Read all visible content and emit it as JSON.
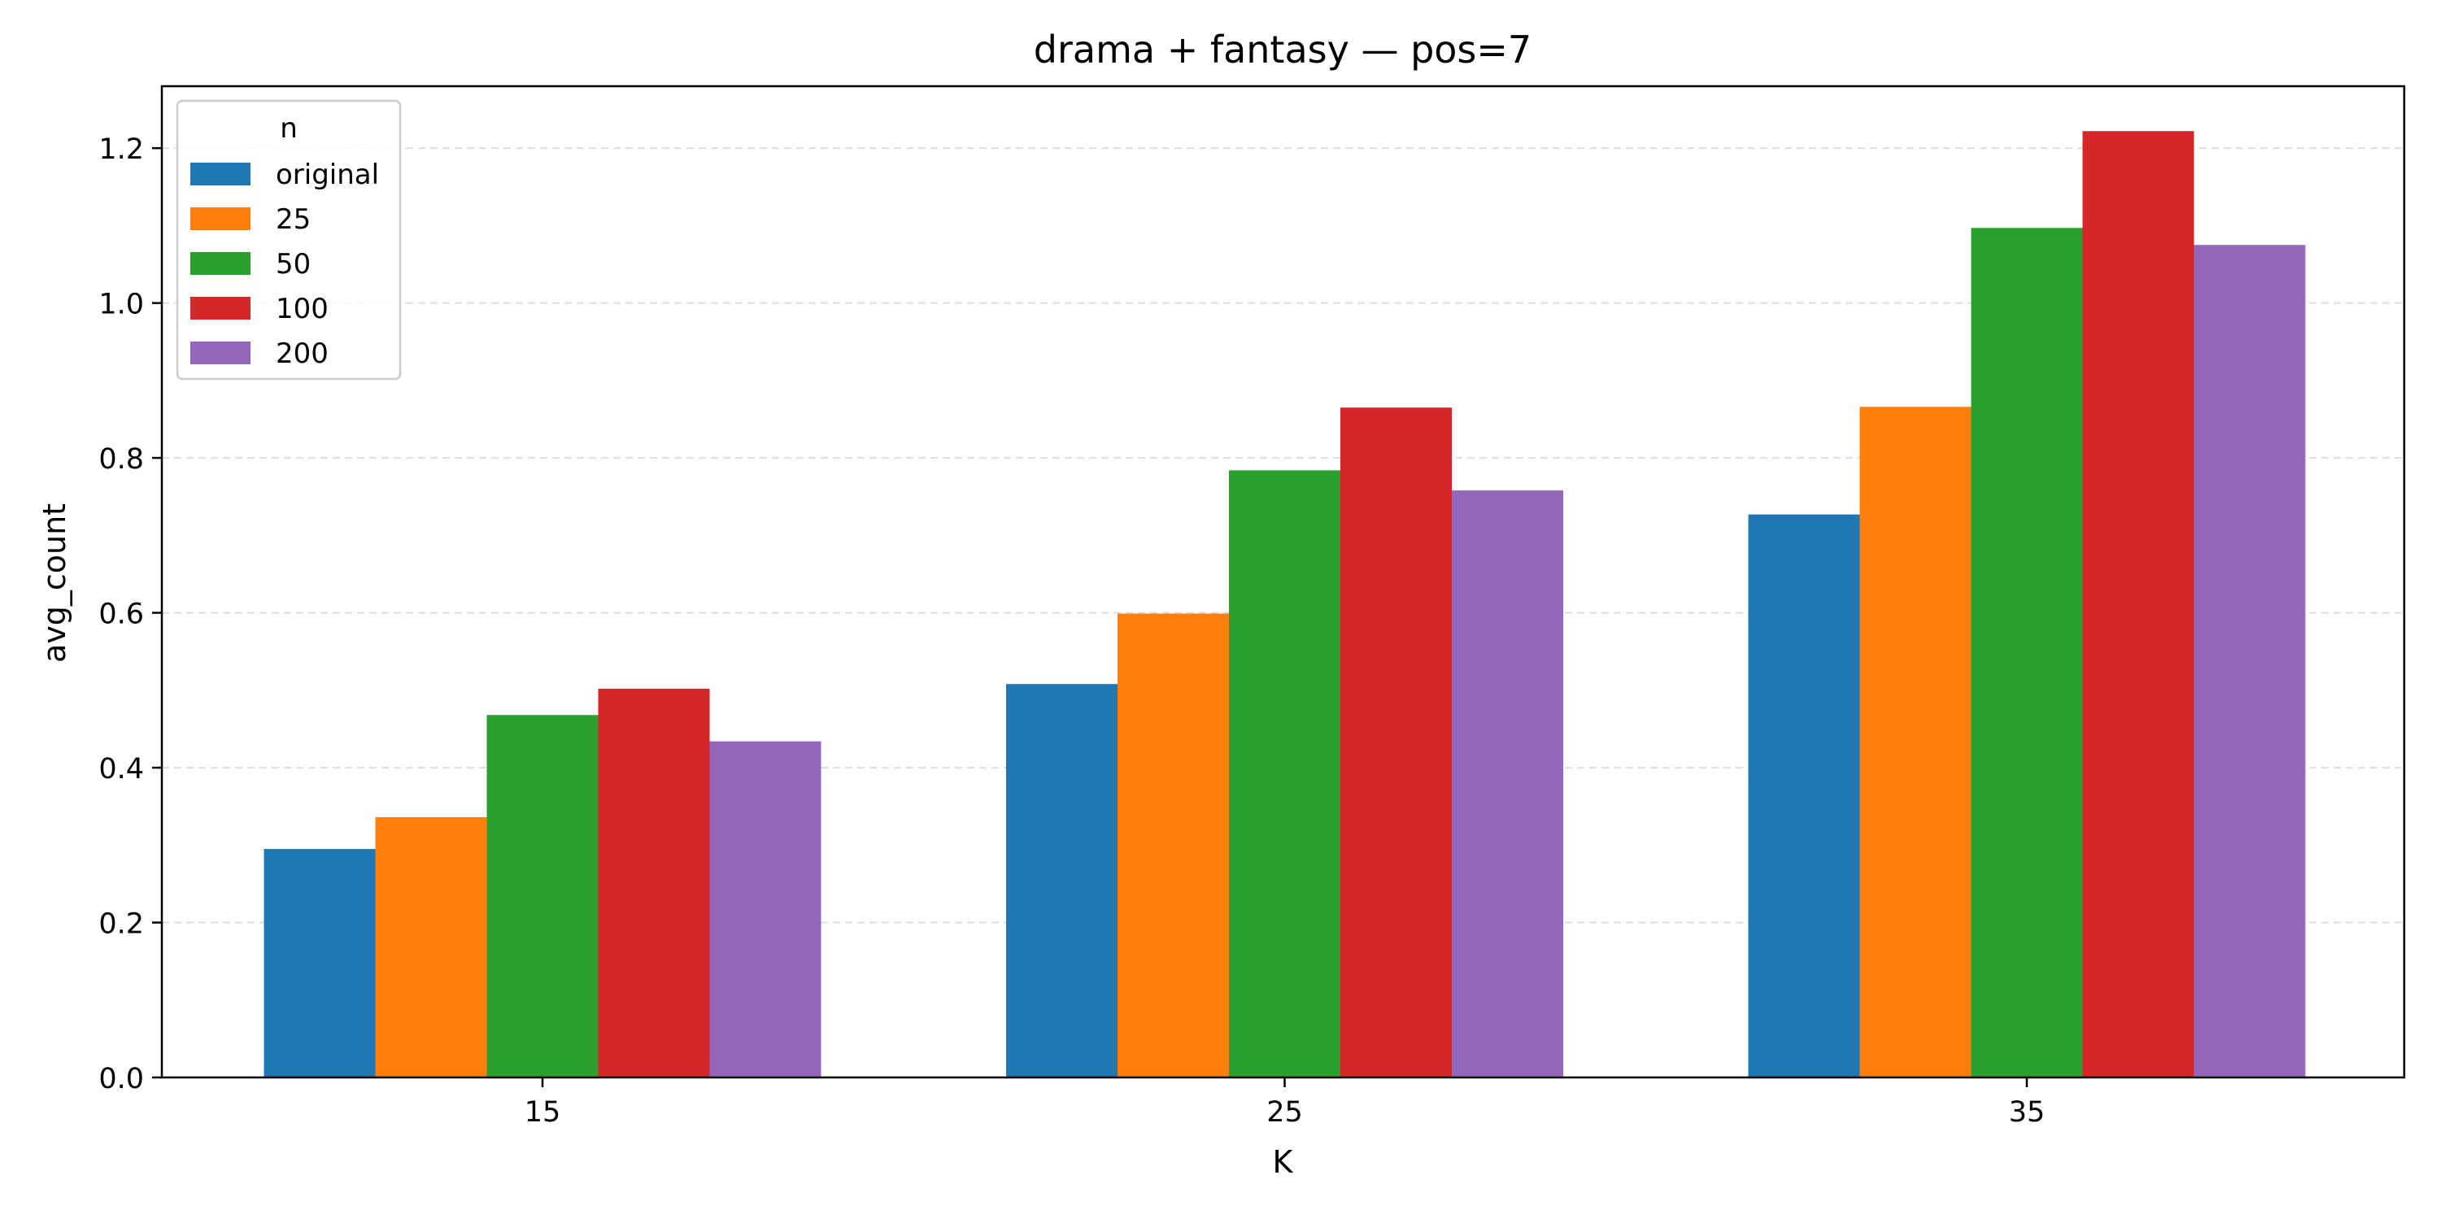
{
  "chart_data": {
    "type": "bar",
    "title": "drama + fantasy — pos=7",
    "xlabel": "K",
    "ylabel": "avg_count",
    "categories": [
      "15",
      "25",
      "35"
    ],
    "ylim": [
      0,
      1.28
    ],
    "yticks": [
      "0.0",
      "0.2",
      "0.4",
      "0.6",
      "0.8",
      "1.0",
      "1.2"
    ],
    "grid": "y, dashed",
    "legend": {
      "title": "n",
      "placement": "top-left"
    },
    "series": [
      {
        "name": "original",
        "color": "#1f77b4",
        "values": [
          0.295,
          0.508,
          0.727
        ]
      },
      {
        "name": "25",
        "color": "#ff7f0e",
        "values": [
          0.336,
          0.599,
          0.866
        ]
      },
      {
        "name": "50",
        "color": "#2ca02c",
        "values": [
          0.468,
          0.784,
          1.097
        ]
      },
      {
        "name": "100",
        "color": "#d62728",
        "values": [
          0.502,
          0.865,
          1.222
        ]
      },
      {
        "name": "200",
        "color": "#9467bd",
        "values": [
          0.434,
          0.758,
          1.075
        ]
      }
    ]
  }
}
